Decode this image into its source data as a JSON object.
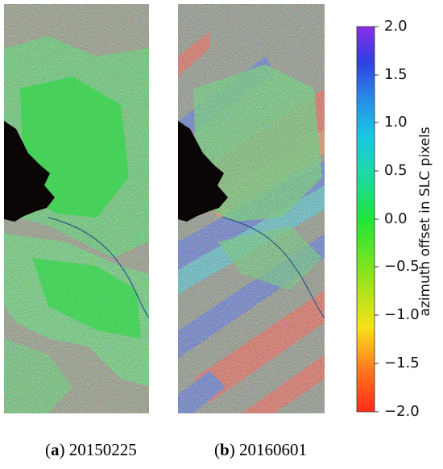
{
  "panels": [
    {
      "letter": "a",
      "date": "20150225"
    },
    {
      "letter": "b",
      "date": "20160601"
    }
  ],
  "colorbar": {
    "label": "azimuth offset in SLC pixels",
    "ticks": [
      "2.0",
      "1.5",
      "1.0",
      "0.5",
      "0.0",
      "−0.5",
      "−1.0",
      "−1.5",
      "−2.0"
    ],
    "range": [
      -2.0,
      2.0
    ],
    "colormap": [
      "#ff2a1a",
      "#ff7a1e",
      "#f6e21a",
      "#8be31c",
      "#1ee63a",
      "#1cd9a8",
      "#19c6e6",
      "#2a86e6",
      "#2f3fe0",
      "#8a2fe6"
    ]
  },
  "colors": {
    "ground_green": "#33d64a",
    "shadow": "#0a0606"
  }
}
